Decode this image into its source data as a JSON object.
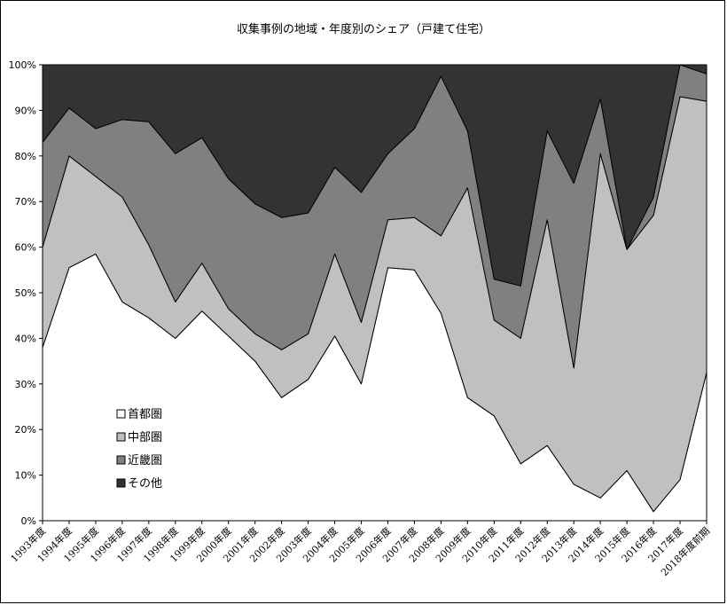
{
  "chart_data": {
    "type": "area",
    "stacked": true,
    "title": "収集事例の地域・年度別のシェア（戸建て住宅）",
    "xlabel": "",
    "ylabel": "",
    "ylim": [
      0,
      100
    ],
    "yticks": [
      "0%",
      "10%",
      "20%",
      "30%",
      "40%",
      "50%",
      "60%",
      "70%",
      "80%",
      "90%",
      "100%"
    ],
    "grid": false,
    "legend_position": "left-bottom inside",
    "categories": [
      "1993年度",
      "1994年度",
      "1995年度",
      "1996年度",
      "1997年度",
      "1998年度",
      "1999年度",
      "2000年度",
      "2001年度",
      "2002年度",
      "2003年度",
      "2004年度",
      "2005年度",
      "2006年度",
      "2007年度",
      "2008年度",
      "2009年度",
      "2010年度",
      "2011年度",
      "2012年度",
      "2013年度",
      "2014年度",
      "2015年度",
      "2016年度",
      "2017年度",
      "2018年度前期"
    ],
    "series": [
      {
        "name": "首都圏",
        "color": "#ffffff",
        "values": [
          38,
          55.5,
          58.5,
          48,
          44.5,
          40,
          46,
          40.5,
          35,
          27,
          31,
          40.5,
          30,
          55.5,
          55,
          45.5,
          27,
          23,
          12.5,
          16.5,
          8,
          5,
          11,
          2,
          9,
          32.5
        ]
      },
      {
        "name": "中部圏",
        "color": "#c0c0c0",
        "values": [
          22,
          24.5,
          17,
          23,
          16,
          8,
          10.5,
          6,
          6,
          10.5,
          10,
          18,
          13.5,
          10.5,
          11.5,
          17,
          46,
          21,
          27.5,
          49.5,
          25.5,
          75.5,
          48.5,
          65,
          84,
          59.5
        ]
      },
      {
        "name": "近畿圏",
        "color": "#808080",
        "values": [
          23,
          10.5,
          10.5,
          17,
          27,
          32.5,
          27.5,
          28.5,
          28.5,
          29,
          26.5,
          19,
          28.5,
          14.5,
          19.5,
          35,
          12.5,
          9,
          11.5,
          19.5,
          40.5,
          12,
          0,
          4,
          7,
          6
        ]
      },
      {
        "name": "その他",
        "color": "#333333",
        "values": [
          17,
          9.5,
          14,
          12,
          12.5,
          19.5,
          16,
          25,
          30.5,
          33.5,
          32.5,
          22.5,
          28,
          19.5,
          14,
          2.5,
          14.5,
          47,
          48.5,
          14.5,
          26,
          7.5,
          40.5,
          29,
          0,
          2
        ]
      }
    ]
  }
}
